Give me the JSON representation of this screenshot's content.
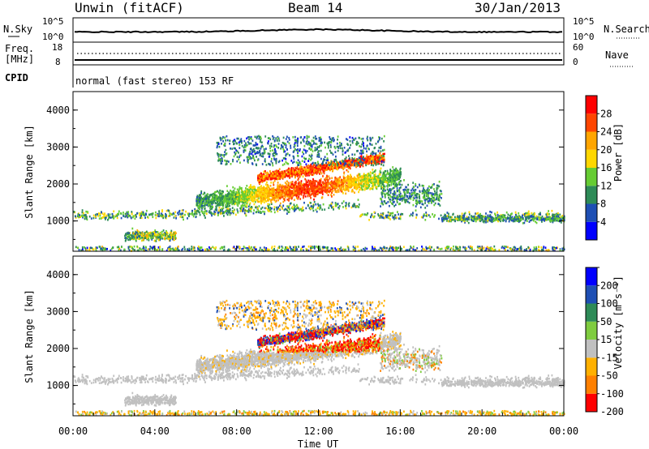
{
  "header": {
    "station": "Unwin (fitACF)",
    "beam": "Beam 14",
    "date": "30/Jan/2013"
  },
  "nsky_panel": {
    "left_label": "N.Sky",
    "right_label": "N.Search",
    "left_ticks": [
      "10^5",
      "10^0"
    ],
    "right_ticks": [
      "10^5",
      "10^0"
    ]
  },
  "freq_panel": {
    "left_label_1": "Freq.",
    "left_label_2": "[MHz]",
    "right_label": "Nave",
    "left_ticks": [
      "18",
      "8"
    ],
    "right_ticks": [
      "60",
      "0"
    ]
  },
  "cpid": {
    "label": "CPID",
    "mode": "normal (fast stereo) 153 RF"
  },
  "chart_data": [
    {
      "type": "heatmap",
      "parameter": "Power",
      "ylabel": "Slant Range [km]",
      "ylim": [
        180,
        4500
      ],
      "yticks": [
        "1000",
        "2000",
        "3000",
        "4000"
      ],
      "xlim": [
        0,
        24
      ],
      "colorbar_label": "Power [dB]",
      "colorbar_ticks": [
        "4",
        "8",
        "12",
        "16",
        "20",
        "24",
        "28"
      ],
      "colorbar_range": [
        0,
        30
      ],
      "colors": [
        "#0000ff",
        "#1e4fb4",
        "#2e8b57",
        "#66cc33",
        "#ffd700",
        "#ffa500",
        "#ff4500",
        "#ff0000"
      ]
    },
    {
      "type": "heatmap",
      "parameter": "Velocity",
      "ylabel": "Slant Range [km]",
      "ylim": [
        180,
        4500
      ],
      "yticks": [
        "1000",
        "2000",
        "3000",
        "4000"
      ],
      "xlim": [
        0,
        24
      ],
      "xlabel": "Time UT",
      "xticks": [
        "00:00",
        "04:00",
        "08:00",
        "12:00",
        "16:00",
        "20:00",
        "00:00"
      ],
      "colorbar_label": "Velocity [m s⁻¹]",
      "colorbar_ticks": [
        "200",
        "100",
        "50",
        "15",
        "-15",
        "-50",
        "-100",
        "-200"
      ],
      "colorbar_range": [
        -250,
        250
      ],
      "ground_scatter_color": "#c0c0c0",
      "colors": [
        "#ff0000",
        "#ff8000",
        "#ffb000",
        "#c0c0c0",
        "#7fcc3f",
        "#2e8b57",
        "#1e4fb4",
        "#0000ff"
      ]
    }
  ]
}
